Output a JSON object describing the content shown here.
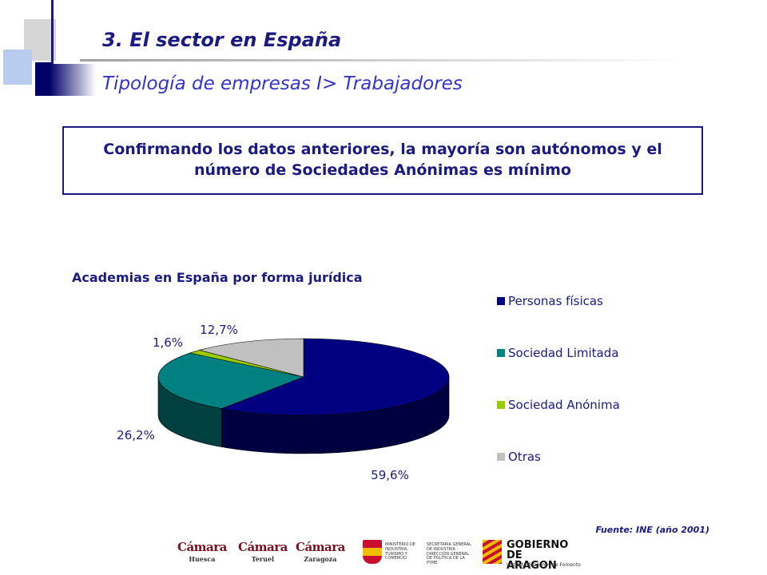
{
  "header": {
    "title": "3. El sector en España",
    "subtitle": "Tipología de empresas I> Trabajadores"
  },
  "callout": {
    "text": "Confirmando los datos anteriores, la mayoría son autónomos y el número de Sociedades Anónimas es mínimo"
  },
  "chart_data": {
    "type": "pie",
    "title": "Academias en España por forma jurídica",
    "three_d": true,
    "legend_position": "right",
    "slices": [
      {
        "name": "Personas físicas",
        "value": 59.6,
        "label": "59,6%",
        "color": "#000080",
        "side_color": "#000040"
      },
      {
        "name": "Sociedad Limitada",
        "value": 26.2,
        "label": "26,2%",
        "color": "#008080",
        "side_color": "#004040"
      },
      {
        "name": "Sociedad Anónima",
        "value": 1.6,
        "label": "1,6%",
        "color": "#99cc00",
        "side_color": "#4d6600"
      },
      {
        "name": "Otras",
        "value": 12.7,
        "label": "12,7%",
        "color": "#c0c0c0",
        "side_color": "#606060"
      }
    ]
  },
  "footer": {
    "source": "Fuente: INE (año 2001)",
    "logos": {
      "camara_word": "Cámara",
      "camara_cities": [
        "Huesca",
        "Teruel",
        "Zaragoza"
      ],
      "ministerio_left": "MINISTERIO DE INDUSTRIA, TURISMO Y COMERCIO",
      "ministerio_right": "SECRETARÍA GENERAL DE INDUSTRIA · DIRECCIÓN GENERAL DE POLÍTICA DE LA PYME",
      "aragon_name": "GOBIERNO DE ARAGON",
      "aragon_sub": "Instituto Aragonés de Fomento"
    }
  }
}
